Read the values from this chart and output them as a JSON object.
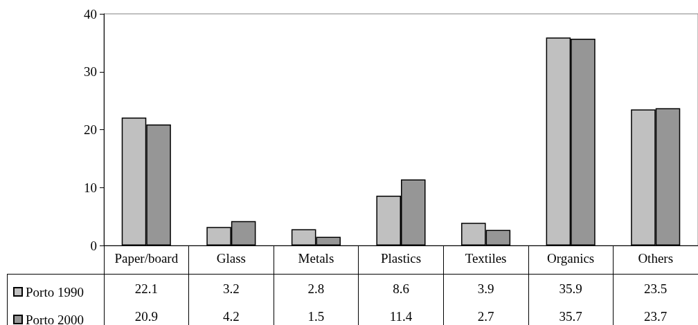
{
  "chart_data": {
    "type": "bar",
    "categories": [
      "Paper/board",
      "Glass",
      "Metals",
      "Plastics",
      "Textiles",
      "Organics",
      "Others"
    ],
    "series": [
      {
        "name": "Porto 1990",
        "color": "#c0c0c0",
        "values": [
          22.1,
          3.2,
          2.8,
          8.6,
          3.9,
          35.9,
          23.5
        ]
      },
      {
        "name": "Porto 2000",
        "color": "#969696",
        "values": [
          20.9,
          4.2,
          1.5,
          11.4,
          2.7,
          35.7,
          23.7
        ]
      }
    ],
    "ylim": [
      0,
      40
    ],
    "yticks": [
      0,
      10,
      20,
      30,
      40
    ],
    "grid": false,
    "legend": "bottom left",
    "data_labels": true
  }
}
